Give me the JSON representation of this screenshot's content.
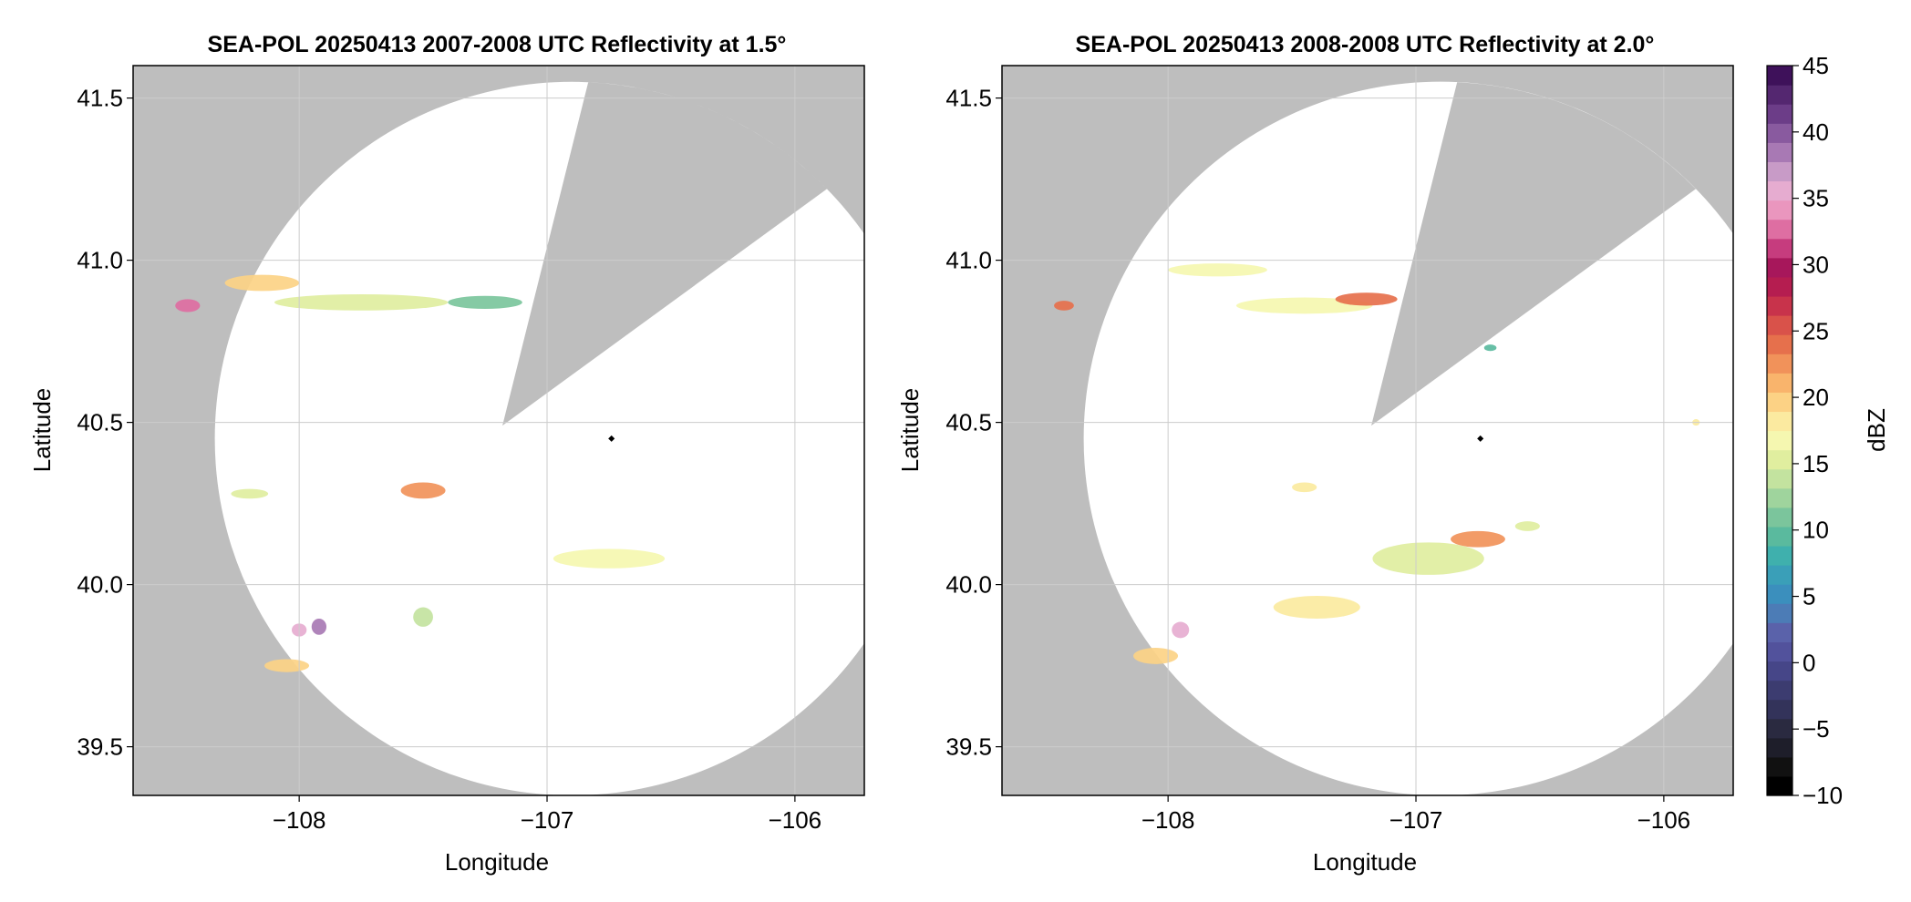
{
  "colors": {
    "background_outside_range": "#bebebe",
    "in_range": "#ffffff",
    "grid": "#cccccc",
    "radar_marker": "#000000"
  },
  "chart_data": [
    {
      "type": "heatmap",
      "title": "SEA-POL 20250413 2007-2008 UTC Reflectivity at 1.5°",
      "xlabel": "Longitude",
      "ylabel": "Latitude",
      "xlim": [
        -108.67,
        -105.72
      ],
      "ylim": [
        39.35,
        41.6
      ],
      "xticks": [
        -108,
        -107,
        -106
      ],
      "xtick_labels": [
        "−108",
        "−107",
        "−106"
      ],
      "yticks": [
        39.5,
        40.0,
        40.5,
        41.0,
        41.5
      ],
      "ytick_labels": [
        "39.5",
        "40.0",
        "40.5",
        "41.0",
        "41.5"
      ],
      "grid": true,
      "radar_location": [
        -106.74,
        40.45
      ],
      "coverage_center": [
        -106.9,
        40.45
      ],
      "coverage_radius_deg_lat": 1.1,
      "blocked_sector": {
        "apex": [
          -107.18,
          40.49
        ],
        "edge_points": [
          [
            -106.84,
            41.53
          ],
          [
            -106.05,
            41.12
          ]
        ]
      },
      "echoes": [
        {
          "lon": -108.45,
          "lat": 40.86,
          "w": 0.1,
          "h": 0.04,
          "dbz": 32
        },
        {
          "lon": -108.15,
          "lat": 40.93,
          "w": 0.3,
          "h": 0.05,
          "dbz": 20
        },
        {
          "lon": -107.75,
          "lat": 40.87,
          "w": 0.7,
          "h": 0.05,
          "dbz": 15
        },
        {
          "lon": -107.25,
          "lat": 40.87,
          "w": 0.3,
          "h": 0.04,
          "dbz": 11
        },
        {
          "lon": -107.5,
          "lat": 40.29,
          "w": 0.18,
          "h": 0.05,
          "dbz": 22
        },
        {
          "lon": -108.2,
          "lat": 40.28,
          "w": 0.15,
          "h": 0.03,
          "dbz": 15
        },
        {
          "lon": -106.75,
          "lat": 40.08,
          "w": 0.45,
          "h": 0.06,
          "dbz": 17
        },
        {
          "lon": -108.0,
          "lat": 39.86,
          "w": 0.06,
          "h": 0.04,
          "dbz": 35
        },
        {
          "lon": -107.92,
          "lat": 39.87,
          "w": 0.06,
          "h": 0.05,
          "dbz": 38
        },
        {
          "lon": -108.05,
          "lat": 39.75,
          "w": 0.18,
          "h": 0.04,
          "dbz": 20
        },
        {
          "lon": -107.5,
          "lat": 39.9,
          "w": 0.08,
          "h": 0.06,
          "dbz": 14
        }
      ]
    },
    {
      "type": "heatmap",
      "title": "SEA-POL 20250413 2008-2008 UTC Reflectivity at 2.0°",
      "xlabel": "Longitude",
      "ylabel": "Latitude",
      "xlim": [
        -108.67,
        -105.72
      ],
      "ylim": [
        39.35,
        41.6
      ],
      "xticks": [
        -108,
        -107,
        -106
      ],
      "xtick_labels": [
        "−108",
        "−107",
        "−106"
      ],
      "yticks": [
        39.5,
        40.0,
        40.5,
        41.0,
        41.5
      ],
      "ytick_labels": [
        "39.5",
        "40.0",
        "40.5",
        "41.0",
        "41.5"
      ],
      "grid": true,
      "radar_location": [
        -106.74,
        40.45
      ],
      "coverage_center": [
        -106.9,
        40.45
      ],
      "coverage_radius_deg_lat": 1.1,
      "blocked_sector": {
        "apex": [
          -107.18,
          40.49
        ],
        "edge_points": [
          [
            -106.84,
            41.53
          ],
          [
            -106.05,
            41.12
          ]
        ]
      },
      "echoes": [
        {
          "lon": -108.42,
          "lat": 40.86,
          "w": 0.08,
          "h": 0.03,
          "dbz": 24
        },
        {
          "lon": -107.8,
          "lat": 40.97,
          "w": 0.4,
          "h": 0.04,
          "dbz": 17
        },
        {
          "lon": -107.45,
          "lat": 40.86,
          "w": 0.55,
          "h": 0.05,
          "dbz": 17
        },
        {
          "lon": -107.2,
          "lat": 40.88,
          "w": 0.25,
          "h": 0.04,
          "dbz": 24
        },
        {
          "lon": -106.7,
          "lat": 40.73,
          "w": 0.05,
          "h": 0.02,
          "dbz": 10
        },
        {
          "lon": -107.45,
          "lat": 40.3,
          "w": 0.1,
          "h": 0.03,
          "dbz": 18
        },
        {
          "lon": -106.95,
          "lat": 40.08,
          "w": 0.45,
          "h": 0.1,
          "dbz": 15
        },
        {
          "lon": -106.75,
          "lat": 40.14,
          "w": 0.22,
          "h": 0.05,
          "dbz": 22
        },
        {
          "lon": -107.4,
          "lat": 39.93,
          "w": 0.35,
          "h": 0.07,
          "dbz": 18
        },
        {
          "lon": -107.95,
          "lat": 39.86,
          "w": 0.07,
          "h": 0.05,
          "dbz": 36
        },
        {
          "lon": -108.05,
          "lat": 39.78,
          "w": 0.18,
          "h": 0.05,
          "dbz": 19
        },
        {
          "lon": -106.55,
          "lat": 40.18,
          "w": 0.1,
          "h": 0.03,
          "dbz": 15
        },
        {
          "lon": -105.87,
          "lat": 40.5,
          "w": 0.03,
          "h": 0.02,
          "dbz": 18
        }
      ]
    }
  ],
  "colorbar": {
    "label": "dBZ",
    "min": -10,
    "max": 45,
    "ticks": [
      -10,
      -5,
      0,
      5,
      10,
      15,
      20,
      25,
      30,
      35,
      40,
      45
    ],
    "tick_labels": [
      "−10",
      "−5",
      "0",
      "5",
      "10",
      "15",
      "20",
      "25",
      "30",
      "35",
      "40",
      "45"
    ],
    "colors": [
      "#000000",
      "#111111",
      "#1e1e2a",
      "#2a2a40",
      "#33335a",
      "#3c3c70",
      "#464688",
      "#52529c",
      "#5a62aa",
      "#4c7cb6",
      "#3b8fbd",
      "#3a9fb8",
      "#3fb0ad",
      "#5aba9e",
      "#7bc59c",
      "#9fd49d",
      "#c3e39f",
      "#e0ee9f",
      "#f5f7b0",
      "#fbeaa0",
      "#fcd285",
      "#f9b46c",
      "#f1925a",
      "#e6704c",
      "#d9524a",
      "#c8334b",
      "#b51d50",
      "#a7175b",
      "#c63c7e",
      "#de6ea2",
      "#ea96be",
      "#e6acd0",
      "#c89bc7",
      "#a879b4",
      "#895a9f",
      "#6c3d88",
      "#542770",
      "#3e115a"
    ]
  }
}
